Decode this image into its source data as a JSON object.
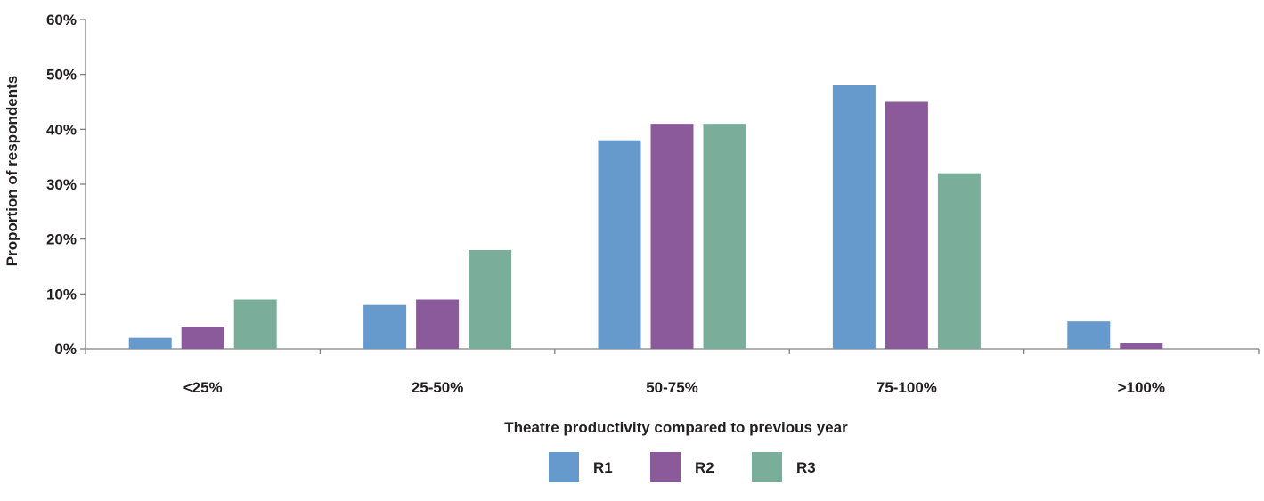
{
  "chart_data": {
    "type": "bar",
    "title": "",
    "xlabel": "Theatre productivity compared to previous year",
    "ylabel": "Proportion of respondents",
    "categories": [
      "<25%",
      "25-50%",
      "50-75%",
      "75-100%",
      ">100%"
    ],
    "series": [
      {
        "name": "R1",
        "color": "#6699cc",
        "values": [
          2,
          8,
          38,
          48,
          5
        ]
      },
      {
        "name": "R2",
        "color": "#8a5a9b",
        "values": [
          4,
          9,
          41,
          45,
          1
        ]
      },
      {
        "name": "R3",
        "color": "#7aae9b",
        "values": [
          9,
          18,
          41,
          32,
          0
        ]
      }
    ],
    "ylim": [
      0,
      60
    ],
    "yticks": [
      "0%",
      "10%",
      "20%",
      "30%",
      "40%",
      "50%",
      "60%"
    ],
    "grid": false,
    "legend_position": "bottom-center"
  }
}
